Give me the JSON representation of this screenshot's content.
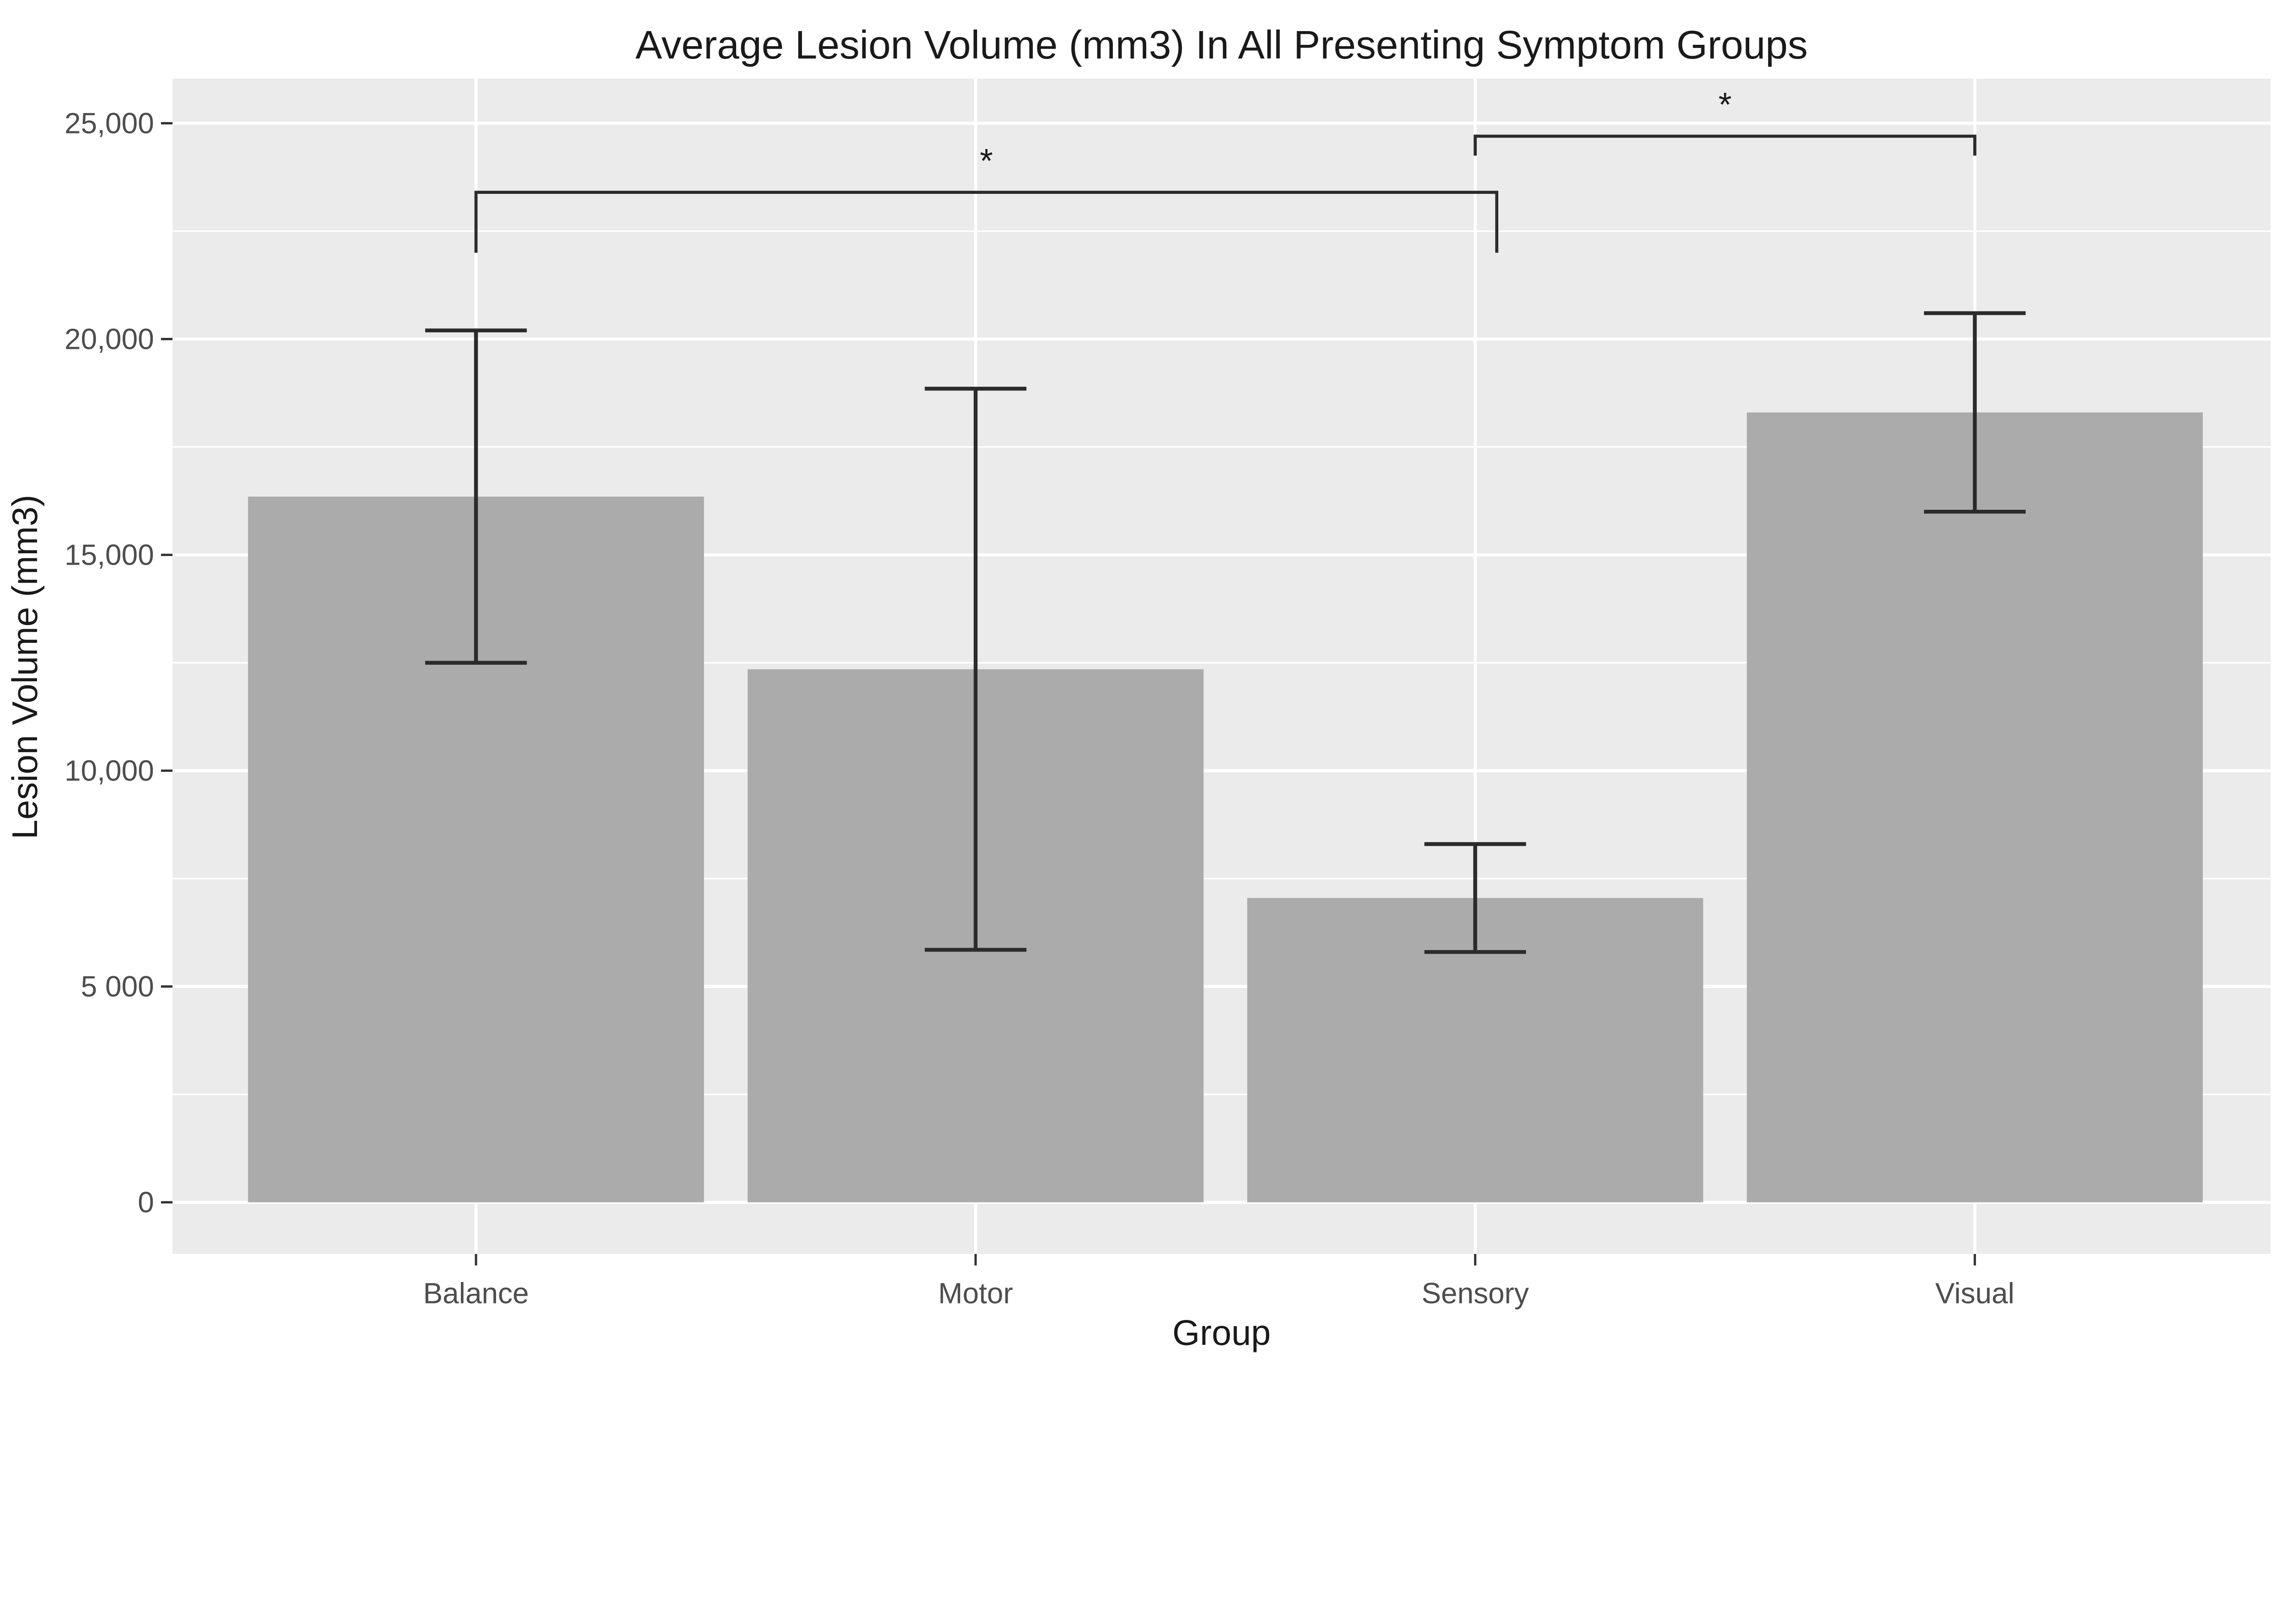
{
  "chart_data": {
    "type": "bar",
    "title": "Average Lesion Volume (mm3) In All Presenting Symptom Groups",
    "xlabel": "Group",
    "ylabel": "Lesion Volume (mm3)",
    "categories": [
      "Balance",
      "Motor",
      "Sensory",
      "Visual"
    ],
    "series": [
      {
        "name": "Average lesion volume (mm3)",
        "values": [
          16350,
          12350,
          7050,
          18300
        ]
      }
    ],
    "error_bars": {
      "upper": [
        20200,
        18850,
        8300,
        20600
      ],
      "lower": [
        12500,
        5850,
        5800,
        16000
      ]
    },
    "y_ticks": [
      {
        "value": 0,
        "label": "0"
      },
      {
        "value": 5000,
        "label": "5 000"
      },
      {
        "value": 10000,
        "label": "10,000"
      },
      {
        "value": 15000,
        "label": "15,000"
      },
      {
        "value": 20000,
        "label": "20,000"
      },
      {
        "value": 25000,
        "label": "25,000"
      }
    ],
    "minor_gridlines": [
      2500,
      7500,
      12500,
      17500,
      22500
    ],
    "ylim": [
      -1200,
      26050
    ],
    "grid": true,
    "legend_position": "none",
    "significance_brackets": [
      {
        "x1": "Balance",
        "x2": "Sensory",
        "x2_offset": 14,
        "y": 23400,
        "y_tick_end": 22000,
        "label": "*"
      },
      {
        "x1": "Sensory",
        "x2": "Visual",
        "x2_offset": 0,
        "y": 24700,
        "y_tick_end": 24250,
        "label": "*"
      }
    ],
    "colors": {
      "background": "#FFFFFF",
      "panel_bg": "#EBEBEB",
      "gridline": "#FFFFFF",
      "bar_fill": "#ABABAB",
      "error_bar": "#2B2B2B",
      "bracket": "#2B2B2B",
      "tick_mark": "#333333",
      "tick_label": "#4D4D4D",
      "title_text": "#1A1A1A"
    }
  }
}
